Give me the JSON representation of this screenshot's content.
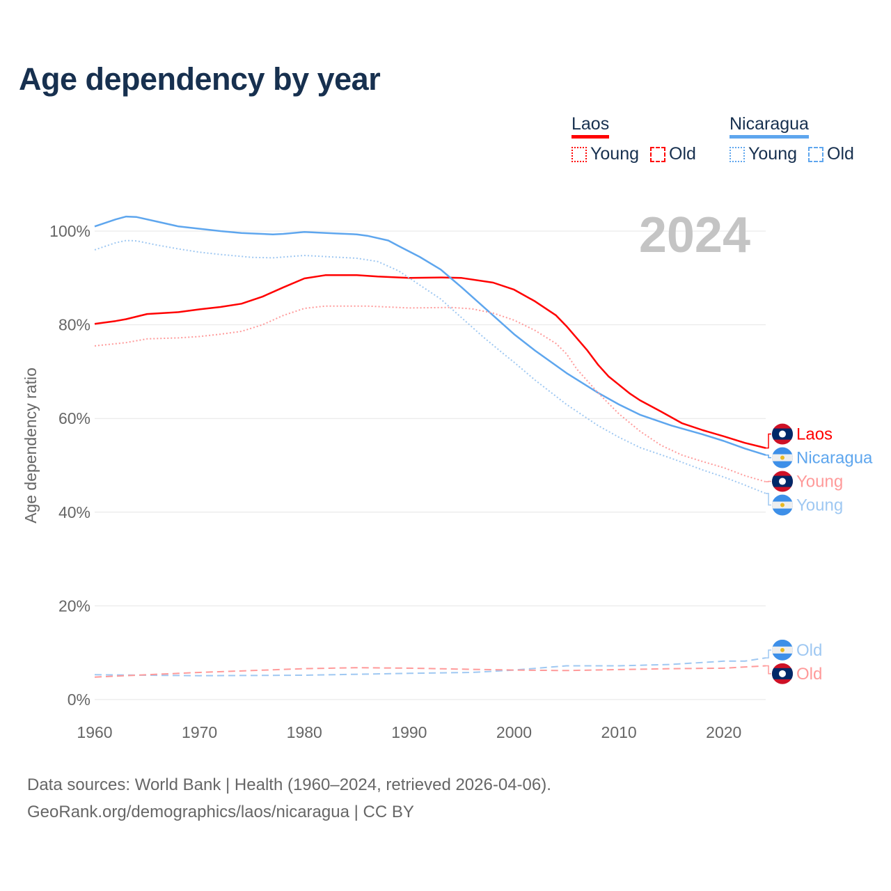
{
  "title": "Age dependency by year",
  "legend": {
    "groups": [
      {
        "name": "Laos",
        "color": "#ff0000",
        "light": "#ff9a9a",
        "items": [
          "Young",
          "Old"
        ]
      },
      {
        "name": "Nicaragua",
        "color": "#5ea6ee",
        "light": "#9fc8f2",
        "items": [
          "Young",
          "Old"
        ]
      }
    ]
  },
  "year_label": "2024",
  "source_line1": "Data sources: World Bank | Health (1960–2024, retrieved 2026-04-06).",
  "source_line2": "GeoRank.org/demographics/laos/nicaragua | CC BY",
  "chart_data": {
    "type": "line",
    "title": "Age dependency by year",
    "xlabel": "",
    "ylabel": "Age dependency ratio",
    "xlim": [
      1960,
      2024
    ],
    "ylim": [
      0,
      110
    ],
    "xticks": [
      1960,
      1970,
      1980,
      1990,
      2000,
      2010,
      2020
    ],
    "xtick_labels": [
      "1960",
      "1970",
      "1980",
      "1990",
      "2000",
      "2010",
      "2020"
    ],
    "yticks": [
      0,
      20,
      40,
      60,
      80,
      100
    ],
    "ytick_labels": [
      "0%",
      "20%",
      "40%",
      "60%",
      "80%",
      "100%"
    ],
    "grid": true,
    "series": [
      {
        "name": "Laos",
        "label": "Laos",
        "country": "laos",
        "style": "solid",
        "color": "#ff0000",
        "x": [
          1960,
          1962,
          1963,
          1965,
          1968,
          1970,
          1972,
          1974,
          1976,
          1978,
          1980,
          1982,
          1985,
          1987,
          1990,
          1993,
          1995,
          1998,
          2000,
          2002,
          2004,
          2005,
          2007,
          2008,
          2009,
          2010,
          2011,
          2012,
          2014,
          2016,
          2018,
          2020,
          2022,
          2024
        ],
        "y": [
          80.2,
          80.8,
          81.2,
          82.3,
          82.7,
          83.3,
          83.8,
          84.5,
          86,
          88,
          89.9,
          90.6,
          90.6,
          90.3,
          90.0,
          90.1,
          90.0,
          89.0,
          87.5,
          85,
          82,
          79.7,
          74.5,
          71.5,
          69,
          67.2,
          65.4,
          63.9,
          61.5,
          59,
          57.5,
          56.2,
          54.8,
          53.7
        ]
      },
      {
        "name": "Nicaragua",
        "label": "Nicaragua",
        "country": "nicaragua",
        "style": "solid",
        "color": "#5ea6ee",
        "x": [
          1960,
          1962,
          1963,
          1964,
          1966,
          1968,
          1970,
          1972,
          1974,
          1977,
          1978,
          1980,
          1983,
          1985,
          1986,
          1988,
          1989,
          1991,
          1993,
          1995,
          1997,
          1999,
          2000,
          2002,
          2005,
          2008,
          2010,
          2012,
          2015,
          2018,
          2020,
          2022,
          2024
        ],
        "y": [
          101,
          102.5,
          103.1,
          103,
          102,
          101,
          100.5,
          100,
          99.6,
          99.3,
          99.4,
          99.8,
          99.5,
          99.3,
          99,
          98,
          96.8,
          94.5,
          91.8,
          88,
          84,
          80,
          78,
          74.5,
          69.7,
          65.5,
          63,
          60.8,
          58.5,
          56.6,
          55.2,
          53.6,
          52.2
        ]
      },
      {
        "name": "Laos Young",
        "label": "Young",
        "country": "laos",
        "style": "dotted",
        "color": "#ff9a9a",
        "x": [
          1960,
          1963,
          1965,
          1968,
          1970,
          1972,
          1974,
          1976,
          1978,
          1980,
          1982,
          1986,
          1990,
          1994,
          1996,
          1998,
          2000,
          2002,
          2004,
          2005,
          2006,
          2008,
          2010,
          2012,
          2014,
          2016,
          2018,
          2020,
          2022,
          2024
        ],
        "y": [
          75.5,
          76.2,
          77,
          77.2,
          77.5,
          78,
          78.6,
          80,
          82,
          83.5,
          84,
          84,
          83.6,
          83.7,
          83.4,
          82.5,
          81,
          78.8,
          76,
          73.8,
          70.5,
          65.5,
          61,
          57.3,
          54.3,
          52.2,
          50.8,
          49.5,
          47.8,
          46.5
        ]
      },
      {
        "name": "Nicaragua Young",
        "label": "Young",
        "country": "nicaragua",
        "style": "dotted",
        "color": "#9fc8f2",
        "x": [
          1960,
          1962,
          1963,
          1964,
          1966,
          1968,
          1970,
          1972,
          1975,
          1977,
          1980,
          1985,
          1987,
          1989,
          1991,
          1993,
          1995,
          1997,
          1999,
          2000,
          2002,
          2005,
          2008,
          2010,
          2012,
          2015,
          2018,
          2020,
          2022,
          2024
        ],
        "y": [
          96,
          97.5,
          98,
          97.9,
          97,
          96.2,
          95.5,
          95,
          94.4,
          94.3,
          94.8,
          94.2,
          93.5,
          91.5,
          88.5,
          85.5,
          81.5,
          77.5,
          73.8,
          72,
          68.2,
          63,
          58.5,
          56,
          53.8,
          51.5,
          49,
          47.5,
          45.8,
          44
        ]
      },
      {
        "name": "Nicaragua Old",
        "label": "Old",
        "country": "nicaragua",
        "style": "dashed",
        "color": "#9fc8f2",
        "x": [
          1960,
          1970,
          1980,
          1990,
          1996,
          2000,
          2005,
          2010,
          2015,
          2020,
          2022,
          2024
        ],
        "y": [
          5.3,
          5.1,
          5.2,
          5.6,
          5.8,
          6.3,
          7.2,
          7.2,
          7.5,
          8.2,
          8.2,
          8.9
        ]
      },
      {
        "name": "Laos Old",
        "label": "Old",
        "country": "laos",
        "style": "dashed",
        "color": "#ff9a9a",
        "x": [
          1960,
          1965,
          1970,
          1975,
          1980,
          1985,
          1990,
          1995,
          2000,
          2005,
          2010,
          2015,
          2020,
          2024
        ],
        "y": [
          4.8,
          5.3,
          5.8,
          6.2,
          6.6,
          6.8,
          6.7,
          6.5,
          6.3,
          6.2,
          6.4,
          6.6,
          6.7,
          7.2
        ]
      }
    ]
  }
}
